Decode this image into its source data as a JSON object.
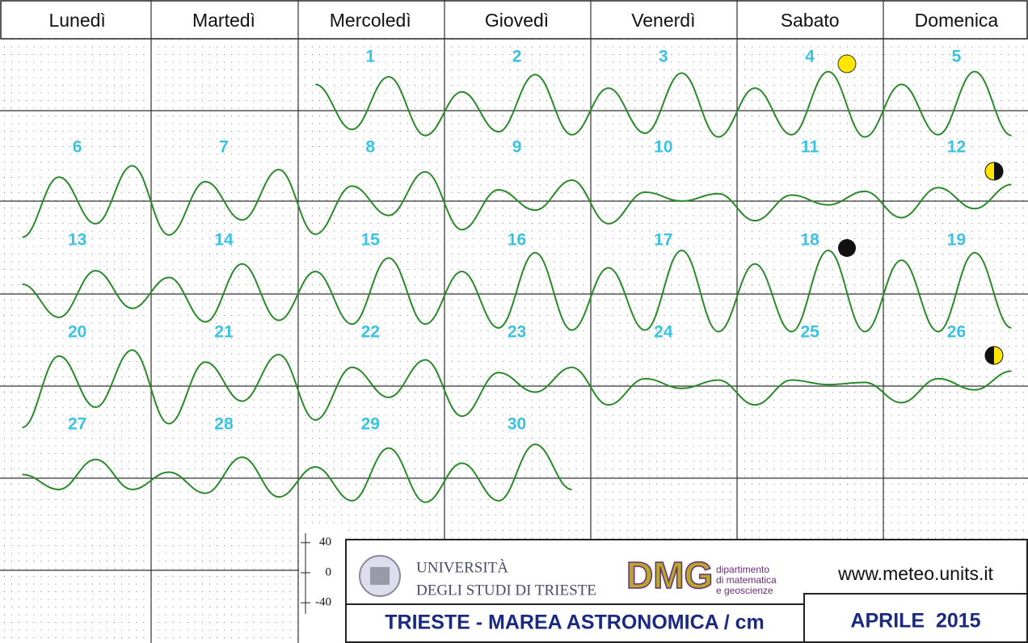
{
  "weekdays": [
    "Lunedì",
    "Martedì",
    "Mercoledì",
    "Giovedì",
    "Venerdì",
    "Sabato",
    "Domenica"
  ],
  "days": [
    {
      "label": "1",
      "extremes": [
        35,
        -25,
        45,
        -33
      ]
    },
    {
      "label": "2",
      "extremes": [
        25,
        -28,
        48,
        -32
      ]
    },
    {
      "label": "3",
      "extremes": [
        30,
        -30,
        50,
        -35
      ]
    },
    {
      "label": "4",
      "extremes": [
        30,
        -32,
        52,
        -35
      ]
    },
    {
      "label": "5",
      "extremes": [
        35,
        -32,
        52,
        -33
      ]
    },
    {
      "label": "6",
      "extremes": [
        -48,
        32,
        -30,
        47
      ]
    },
    {
      "label": "7",
      "extremes": [
        -45,
        26,
        -25,
        42
      ]
    },
    {
      "label": "8",
      "extremes": [
        -44,
        20,
        -19,
        39
      ]
    },
    {
      "label": "9",
      "extremes": [
        -38,
        15,
        -12,
        28
      ]
    },
    {
      "label": "10",
      "extremes": [
        -30,
        12,
        0,
        10
      ]
    },
    {
      "label": "11",
      "extremes": [
        -26,
        8,
        -5,
        13
      ]
    },
    {
      "label": "12",
      "extremes": [
        -22,
        18,
        -10,
        22
      ]
    },
    {
      "label": "13",
      "extremes": [
        13,
        -31,
        31,
        -19
      ]
    },
    {
      "label": "14",
      "extremes": [
        22,
        -37,
        40,
        -35
      ]
    },
    {
      "label": "15",
      "extremes": [
        30,
        -40,
        48,
        -40
      ]
    },
    {
      "label": "16",
      "extremes": [
        30,
        -45,
        55,
        -48
      ]
    },
    {
      "label": "17",
      "extremes": [
        35,
        -48,
        58,
        -50
      ]
    },
    {
      "label": "18",
      "extremes": [
        40,
        -50,
        58,
        -50
      ]
    },
    {
      "label": "19",
      "extremes": [
        45,
        -50,
        55,
        -45
      ]
    },
    {
      "label": "20",
      "extremes": [
        -55,
        40,
        -28,
        48
      ]
    },
    {
      "label": "21",
      "extremes": [
        -50,
        32,
        -20,
        42
      ]
    },
    {
      "label": "22",
      "extremes": [
        -45,
        25,
        -15,
        35
      ]
    },
    {
      "label": "23",
      "extremes": [
        -40,
        18,
        -8,
        25
      ]
    },
    {
      "label": "24",
      "extremes": [
        -25,
        10,
        -3,
        8
      ]
    },
    {
      "label": "25",
      "extremes": [
        -25,
        8,
        2,
        5
      ]
    },
    {
      "label": "26",
      "extremes": [
        -22,
        10,
        -5,
        20
      ]
    },
    {
      "label": "27",
      "extremes": [
        5,
        -15,
        25,
        -15
      ]
    },
    {
      "label": "28",
      "extremes": [
        8,
        -20,
        28,
        -25
      ]
    },
    {
      "label": "29",
      "extremes": [
        15,
        -30,
        40,
        -32
      ]
    },
    {
      "label": "30",
      "extremes": [
        20,
        -30,
        45,
        -15
      ]
    }
  ],
  "scale": {
    "ticks": [
      40,
      0,
      -40
    ]
  },
  "footer": {
    "university": [
      "UNIVERSITÀ",
      "DEGLI STUDI DI TRIESTE"
    ],
    "dept_logo": "DMG",
    "dept": [
      "dipartimento",
      "di matematica",
      "e geoscienze"
    ],
    "url": "www.meteo.units.it",
    "title": "TRIESTE - MAREA ASTRONOMICA / cm",
    "month": "APRILE  2015"
  }
}
